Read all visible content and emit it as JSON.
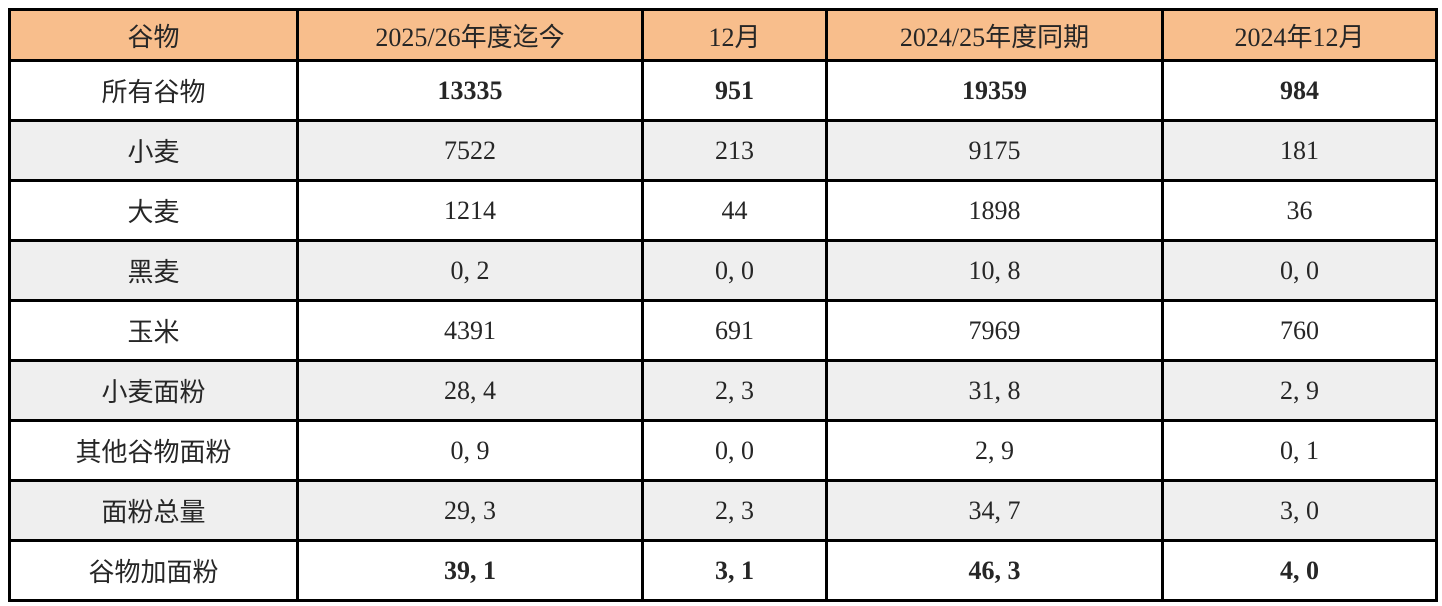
{
  "table": {
    "headers": [
      "谷物",
      "2025/26年度迄今",
      "12月",
      "2024/25年度同期",
      "2024年12月"
    ],
    "rows": [
      {
        "label": "所有谷物",
        "values": [
          "13335",
          "951",
          "19359",
          "984"
        ],
        "bold": true
      },
      {
        "label": "小麦",
        "values": [
          "7522",
          "213",
          "9175",
          "181"
        ],
        "bold": false
      },
      {
        "label": "大麦",
        "values": [
          "1214",
          "44",
          "1898",
          "36"
        ],
        "bold": false
      },
      {
        "label": "黑麦",
        "values": [
          "0, 2",
          "0, 0",
          "10, 8",
          "0, 0"
        ],
        "bold": false
      },
      {
        "label": "玉米",
        "values": [
          "4391",
          "691",
          "7969",
          "760"
        ],
        "bold": false
      },
      {
        "label": "小麦面粉",
        "values": [
          "28, 4",
          "2, 3",
          "31, 8",
          "2, 9"
        ],
        "bold": false
      },
      {
        "label": "其他谷物面粉",
        "values": [
          "0, 9",
          "0, 0",
          "2, 9",
          "0, 1"
        ],
        "bold": false
      },
      {
        "label": "面粉总量",
        "values": [
          "29, 3",
          "2, 3",
          "34, 7",
          "3, 0"
        ],
        "bold": false
      },
      {
        "label": "谷物加面粉",
        "values": [
          "39, 1",
          "3, 1",
          "46, 3",
          "4, 0"
        ],
        "bold": true
      }
    ],
    "colors": {
      "header_bg": "#F8BE8C",
      "alt_row_bg": "#EFEFEF",
      "border": "#000000",
      "text": "#262626"
    }
  },
  "chart_data": {
    "type": "table",
    "title": "",
    "columns": [
      "谷物",
      "2025/26年度迄今",
      "12月",
      "2024/25年度同期",
      "2024年12月"
    ],
    "rows": [
      [
        "所有谷物",
        "13335",
        "951",
        "19359",
        "984"
      ],
      [
        "小麦",
        "7522",
        "213",
        "9175",
        "181"
      ],
      [
        "大麦",
        "1214",
        "44",
        "1898",
        "36"
      ],
      [
        "黑麦",
        "0, 2",
        "0, 0",
        "10, 8",
        "0, 0"
      ],
      [
        "玉米",
        "4391",
        "691",
        "7969",
        "760"
      ],
      [
        "小麦面粉",
        "28, 4",
        "2, 3",
        "31, 8",
        "2, 9"
      ],
      [
        "其他谷物面粉",
        "0, 9",
        "0, 0",
        "2, 9",
        "0, 1"
      ],
      [
        "面粉总量",
        "29, 3",
        "2, 3",
        "34, 7",
        "3, 0"
      ],
      [
        "谷物加面粉",
        "39, 1",
        "3, 1",
        "46, 3",
        "4, 0"
      ]
    ],
    "layout_hints": {
      "header_fill": "#F8BE8C",
      "alternating_row_fill": "#EFEFEF",
      "grid": true,
      "bold_rows": [
        "所有谷物",
        "谷物加面粉"
      ]
    }
  }
}
